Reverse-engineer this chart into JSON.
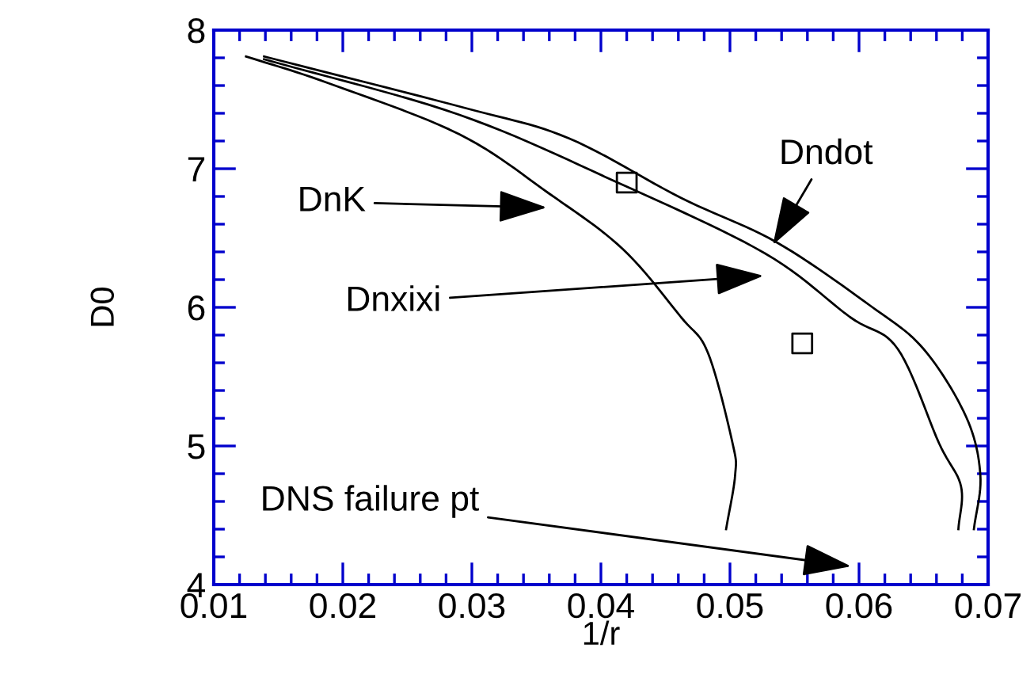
{
  "chart_data": {
    "type": "line",
    "xlabel": "1/r",
    "ylabel": "D0",
    "xlim": [
      0.01,
      0.07
    ],
    "ylim": [
      4,
      8
    ],
    "xticks": [
      0.01,
      0.02,
      0.03,
      0.04,
      0.05,
      0.06,
      0.07
    ],
    "yticks": [
      4,
      5,
      6,
      7,
      8
    ],
    "grid": false,
    "marker": "none",
    "line_style": "solid",
    "series": [
      {
        "color": "#000000",
        "x": [
          0.0125,
          0.0188,
          0.029,
          0.036,
          0.0417,
          0.0462,
          0.0483,
          0.0502,
          0.0504,
          0.0497
        ],
        "values": [
          7.81,
          7.62,
          7.25,
          6.82,
          6.42,
          5.93,
          5.67,
          5.02,
          4.79,
          4.4
        ]
      },
      {
        "color": "#000000",
        "x": [
          0.0139,
          0.029,
          0.0413,
          0.0527,
          0.0593,
          0.063,
          0.0662,
          0.0679,
          0.0677
        ],
        "values": [
          7.79,
          7.39,
          6.9,
          6.39,
          5.93,
          5.7,
          5.02,
          4.71,
          4.4
        ]
      },
      {
        "color": "#000000",
        "x": [
          0.0139,
          0.0294,
          0.0375,
          0.0462,
          0.0536,
          0.0609,
          0.065,
          0.0683,
          0.0694,
          0.0689
        ],
        "values": [
          7.81,
          7.44,
          7.22,
          6.79,
          6.47,
          6.01,
          5.7,
          5.21,
          4.79,
          4.4
        ]
      },
      {
        "type": "scatter",
        "marker": "square",
        "color": "#000000",
        "x": [
          0.042,
          0.0556
        ],
        "values": [
          6.9,
          5.74
        ]
      }
    ],
    "annotations": [
      "DnK",
      "Dnxixi",
      "Dndot",
      "DNS failure pt"
    ]
  }
}
